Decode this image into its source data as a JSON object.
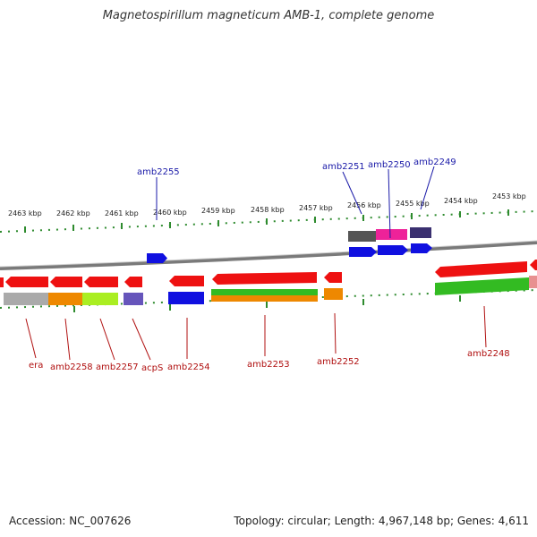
{
  "title": "Magnetospirillum magneticum AMB-1, complete genome",
  "footer": {
    "accession": "Accession: NC_007626",
    "summary": "Topology: circular; Length: 4,967,148 bp; Genes: 4,611"
  },
  "ticks": [
    {
      "label": "2463 kbp"
    },
    {
      "label": "2462 kbp"
    },
    {
      "label": "2461 kbp"
    },
    {
      "label": "2460 kbp"
    },
    {
      "label": "2459 kbp"
    },
    {
      "label": "2458 kbp"
    },
    {
      "label": "2457 kbp"
    },
    {
      "label": "2456 kbp"
    },
    {
      "label": "2455 kbp"
    },
    {
      "label": "2454 kbp"
    },
    {
      "label": "2453 kbp"
    }
  ],
  "top_labels": [
    "amb2255",
    "amb2251",
    "amb2250",
    "amb2249"
  ],
  "bottom_labels": [
    "era",
    "amb2258",
    "amb2257",
    "acpS",
    "amb2254",
    "amb2253",
    "amb2252",
    "amb2248"
  ],
  "colors": {
    "forward_gene": "#1010e0",
    "reverse_gene": "#ee1111",
    "backbone": "#888888",
    "tick": "#2e8b2e",
    "top_label": "#1a1aa8",
    "bottom_label": "#b01010"
  }
}
